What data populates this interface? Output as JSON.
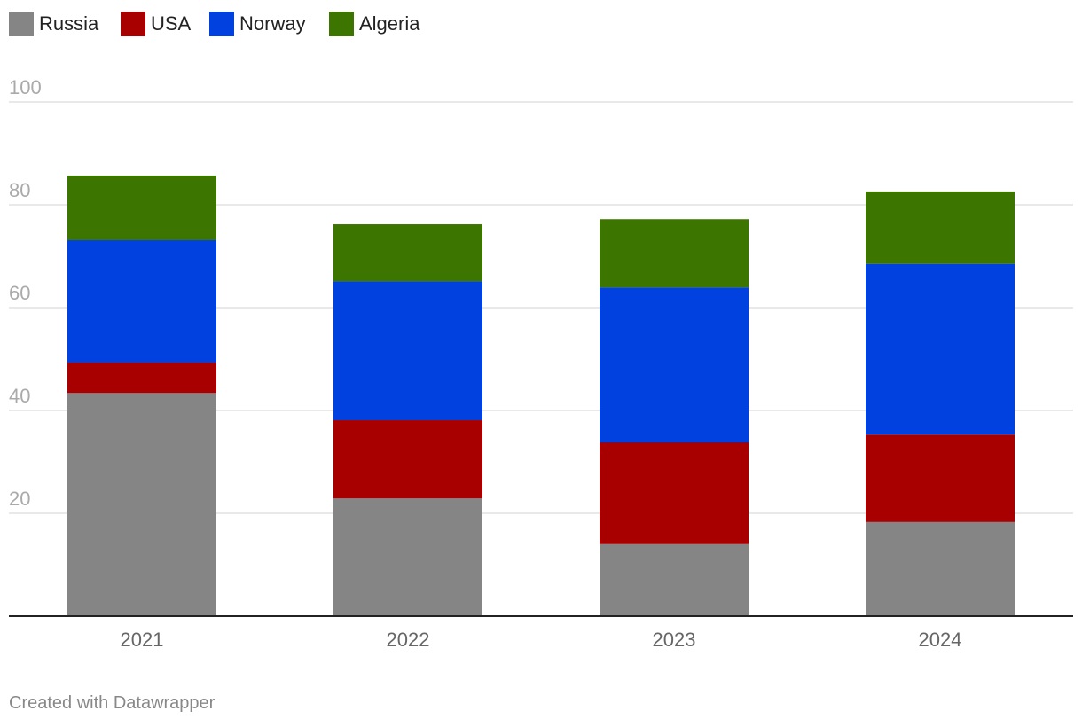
{
  "chart_data": {
    "type": "bar",
    "stacked": true,
    "title": "",
    "xlabel": "",
    "ylabel": "",
    "categories": [
      "2021",
      "2022",
      "2023",
      "2024"
    ],
    "series": [
      {
        "name": "Russia",
        "color": "#858585",
        "values": [
          43.4,
          22.9,
          14.0,
          18.3
        ]
      },
      {
        "name": "USA",
        "color": "#a80000",
        "values": [
          5.9,
          15.2,
          19.8,
          17.0
        ]
      },
      {
        "name": "Norway",
        "color": "#0041e0",
        "values": [
          23.8,
          27.0,
          30.1,
          33.2
        ]
      },
      {
        "name": "Algeria",
        "color": "#3c7500",
        "values": [
          12.6,
          11.1,
          13.3,
          14.1
        ]
      }
    ],
    "yticks": [
      20,
      40,
      60,
      80,
      100
    ],
    "ylim": [
      0,
      100
    ],
    "grid": true,
    "legend_position": "top-left"
  },
  "footer": {
    "credit": "Created with Datawrapper"
  }
}
